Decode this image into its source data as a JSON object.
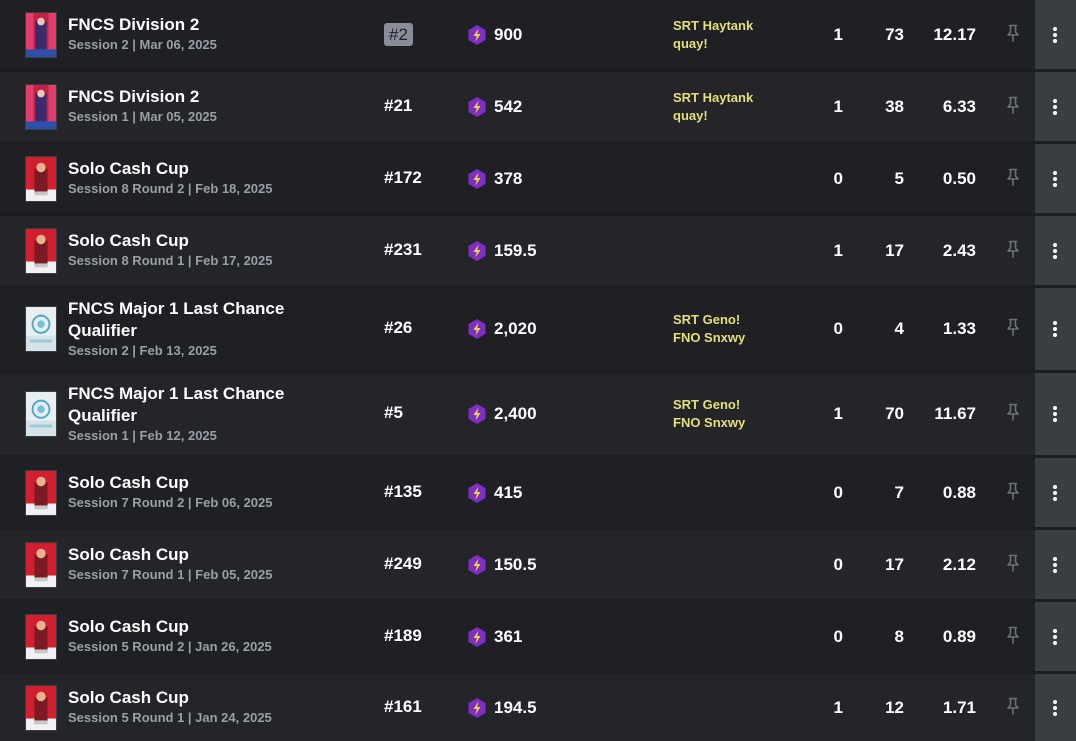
{
  "colors": {
    "row_even": "#1e2023",
    "row_odd": "#232528",
    "team_text": "#e8de7a",
    "points_icon": "#7b2fc4",
    "menu_button": "#3a3d42"
  },
  "rows": [
    {
      "title": "FNCS Division 2",
      "session": "Session 2 | Mar 06, 2025",
      "rank": "#2",
      "rank_badge": true,
      "points": "900",
      "team_line1": "SRT Haytank",
      "team_line2": "quay!",
      "wins": "1",
      "elims": "73",
      "avg": "12.17",
      "thumb": "fncs-division-thumbnail"
    },
    {
      "title": "FNCS Division 2",
      "session": "Session 1 | Mar 05, 2025",
      "rank": "#21",
      "rank_badge": false,
      "points": "542",
      "team_line1": "SRT Haytank",
      "team_line2": "quay!",
      "wins": "1",
      "elims": "38",
      "avg": "6.33",
      "thumb": "fncs-division-thumbnail"
    },
    {
      "title": "Solo Cash Cup",
      "session": "Session 8 Round 2 | Feb 18, 2025",
      "rank": "#172",
      "rank_badge": false,
      "points": "378",
      "team_line1": "",
      "team_line2": "",
      "wins": "0",
      "elims": "5",
      "avg": "0.50",
      "thumb": "solo-cash-cup-thumbnail"
    },
    {
      "title": "Solo Cash Cup",
      "session": "Session 8 Round 1 | Feb 17, 2025",
      "rank": "#231",
      "rank_badge": false,
      "points": "159.5",
      "team_line1": "",
      "team_line2": "",
      "wins": "1",
      "elims": "17",
      "avg": "2.43",
      "thumb": "solo-cash-cup-thumbnail"
    },
    {
      "title": "FNCS Major 1 Last Chance Qualifier",
      "session": "Session 2 | Feb 13, 2025",
      "rank": "#26",
      "rank_badge": false,
      "points": "2,020",
      "team_line1": "SRT Geno!",
      "team_line2": "FNO Snxwy",
      "wins": "0",
      "elims": "4",
      "avg": "1.33",
      "thumb": "lcq-thumbnail"
    },
    {
      "title": "FNCS Major 1 Last Chance Qualifier",
      "session": "Session 1 | Feb 12, 2025",
      "rank": "#5",
      "rank_badge": false,
      "points": "2,400",
      "team_line1": "SRT Geno!",
      "team_line2": "FNO Snxwy",
      "wins": "1",
      "elims": "70",
      "avg": "11.67",
      "thumb": "lcq-thumbnail"
    },
    {
      "title": "Solo Cash Cup",
      "session": "Session 7 Round 2 | Feb 06, 2025",
      "rank": "#135",
      "rank_badge": false,
      "points": "415",
      "team_line1": "",
      "team_line2": "",
      "wins": "0",
      "elims": "7",
      "avg": "0.88",
      "thumb": "solo-cash-cup-thumbnail"
    },
    {
      "title": "Solo Cash Cup",
      "session": "Session 7 Round 1 | Feb 05, 2025",
      "rank": "#249",
      "rank_badge": false,
      "points": "150.5",
      "team_line1": "",
      "team_line2": "",
      "wins": "0",
      "elims": "17",
      "avg": "2.12",
      "thumb": "solo-cash-cup-thumbnail"
    },
    {
      "title": "Solo Cash Cup",
      "session": "Session 5 Round 2 | Jan 26, 2025",
      "rank": "#189",
      "rank_badge": false,
      "points": "361",
      "team_line1": "",
      "team_line2": "",
      "wins": "0",
      "elims": "8",
      "avg": "0.89",
      "thumb": "solo-cash-cup-thumbnail"
    },
    {
      "title": "Solo Cash Cup",
      "session": "Session 5 Round 1 | Jan 24, 2025",
      "rank": "#161",
      "rank_badge": false,
      "points": "194.5",
      "team_line1": "",
      "team_line2": "",
      "wins": "1",
      "elims": "12",
      "avg": "1.71",
      "thumb": "solo-cash-cup-thumbnail"
    }
  ]
}
